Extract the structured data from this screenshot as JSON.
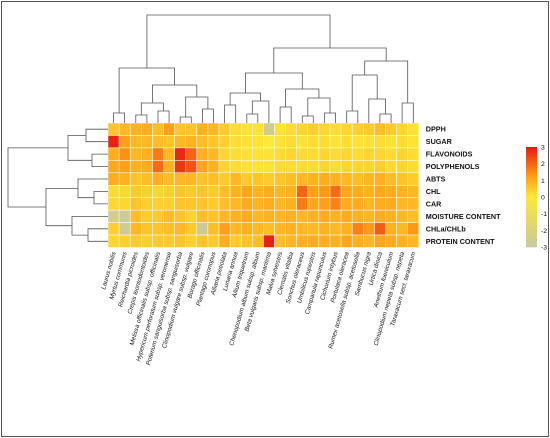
{
  "chart_data": {
    "type": "heatmap",
    "rows": [
      "DPPH",
      "SUGAR",
      "FLAVONOIDS",
      "POLYPHENOLS",
      "ABTS",
      "CHL",
      "CAR",
      "MOISTURE CONTENT",
      "CHLa/CHLb",
      "PROTEIN CONTENT"
    ],
    "columns": [
      "Laurus nobilis",
      "Myrtus communis",
      "Reichardia picroides",
      "Crepis leontodontoides",
      "Melissa officinalis subsp. officinalis",
      "Hypericum perforatum subsp. veronense",
      "Poterium sanguisorba subsp. sanguisorba",
      "Clinopodium vulgare subsp. vulgare",
      "Borago officinalis",
      "Plantago coronopus",
      "Alliaria petiolata",
      "Lunaria annua",
      "Allium triquetrum",
      "Chenopodium album subsp. album",
      "Beta vulgaris subsp. maritima",
      "Malva sylvestris",
      "Clematis vitalba",
      "Sonchus oleraceus",
      "Umbilicus rupestris",
      "Campanula rapunculus",
      "Cichorium intybus",
      "Portulaca oleracea",
      "Rumex acetosella subsp. acetosella",
      "Sambucus nigra",
      "Urtica dioica",
      "Anethum foeniculum",
      "Clinopodium nepeta subsp. nepeta",
      "Taraxacum sect. taraxacum"
    ],
    "values": [
      [
        0.6,
        0.8,
        0.9,
        1.0,
        0.7,
        1.2,
        0.6,
        0.6,
        0.9,
        0.8,
        0.5,
        0.2,
        0.1,
        0.1,
        -2.6,
        0.1,
        0.2,
        0.3,
        0.4,
        0.3,
        0.2,
        0.3,
        0.4,
        0.5,
        0.7,
        0.5,
        0.3,
        0.1
      ],
      [
        2.9,
        1.2,
        0.8,
        0.8,
        0.7,
        0.6,
        0.8,
        0.9,
        0.7,
        0.6,
        0.4,
        0.2,
        0.1,
        0.1,
        0.0,
        0.1,
        0.2,
        0.1,
        0.2,
        0.2,
        0.1,
        0.2,
        0.1,
        0.1,
        0.2,
        0.1,
        0.2,
        0.1
      ],
      [
        1.0,
        1.4,
        0.8,
        0.9,
        1.7,
        0.8,
        2.8,
        2.0,
        0.9,
        0.8,
        0.3,
        0.2,
        0.1,
        0.1,
        0.1,
        0.2,
        0.3,
        0.2,
        0.2,
        0.3,
        0.2,
        0.3,
        0.2,
        0.3,
        0.3,
        0.2,
        0.3,
        0.2
      ],
      [
        1.1,
        1.2,
        0.9,
        1.0,
        1.9,
        0.9,
        2.6,
        2.2,
        1.1,
        0.9,
        0.3,
        0.2,
        0.1,
        0.1,
        0.1,
        0.2,
        0.2,
        0.2,
        0.2,
        0.3,
        0.2,
        0.3,
        0.3,
        0.3,
        0.4,
        0.2,
        0.3,
        0.2
      ],
      [
        1.0,
        0.9,
        0.6,
        0.7,
        0.9,
        0.7,
        0.8,
        0.8,
        0.6,
        0.7,
        0.5,
        0.8,
        0.5,
        0.6,
        0.5,
        0.6,
        0.7,
        0.8,
        0.9,
        1.0,
        0.9,
        0.8,
        0.7,
        0.8,
        0.9,
        0.7,
        0.6,
        0.5
      ],
      [
        0.2,
        0.3,
        0.5,
        0.4,
        0.3,
        0.4,
        0.6,
        0.5,
        0.6,
        0.5,
        0.7,
        0.9,
        1.1,
        0.9,
        1.0,
        0.8,
        0.9,
        2.0,
        1.2,
        1.3,
        1.9,
        1.1,
        1.0,
        0.9,
        1.1,
        1.0,
        0.9,
        0.8
      ],
      [
        0.3,
        0.3,
        0.6,
        0.4,
        0.4,
        0.4,
        0.6,
        0.6,
        0.6,
        0.5,
        0.7,
        0.8,
        1.0,
        0.9,
        1.0,
        0.8,
        0.9,
        1.7,
        1.1,
        1.2,
        1.6,
        1.0,
        1.0,
        0.8,
        1.0,
        1.0,
        0.8,
        0.8
      ],
      [
        -2.4,
        -2.8,
        0.7,
        0.4,
        0.5,
        0.7,
        0.6,
        0.3,
        0.7,
        0.6,
        0.8,
        0.9,
        1.0,
        0.8,
        0.9,
        0.8,
        0.9,
        0.8,
        0.9,
        1.0,
        0.9,
        1.0,
        0.9,
        0.8,
        1.0,
        0.9,
        0.8,
        0.7
      ],
      [
        0.4,
        -2.6,
        0.8,
        0.6,
        0.6,
        0.7,
        0.8,
        0.5,
        -2.8,
        0.7,
        1.2,
        0.8,
        0.9,
        0.8,
        0.7,
        0.8,
        0.9,
        0.8,
        0.8,
        0.9,
        0.8,
        0.9,
        1.6,
        1.3,
        2.1,
        0.9,
        0.8,
        1.3
      ],
      [
        0.3,
        0.4,
        0.5,
        0.4,
        0.5,
        0.5,
        0.6,
        0.4,
        0.6,
        0.5,
        1.0,
        0.5,
        0.6,
        0.7,
        2.9,
        0.7,
        0.8,
        0.9,
        1.0,
        1.0,
        0.9,
        1.1,
        0.9,
        0.8,
        1.1,
        1.0,
        0.9,
        0.8
      ]
    ],
    "legend_ticks": [
      3,
      2,
      1,
      0,
      -1,
      -2,
      -3
    ],
    "value_range": [
      -3,
      3
    ],
    "colors": {
      "low": "#c8c8a0",
      "mid": "#ffe838",
      "high": "#e8190f"
    },
    "grid": true,
    "legend_position": "right"
  }
}
